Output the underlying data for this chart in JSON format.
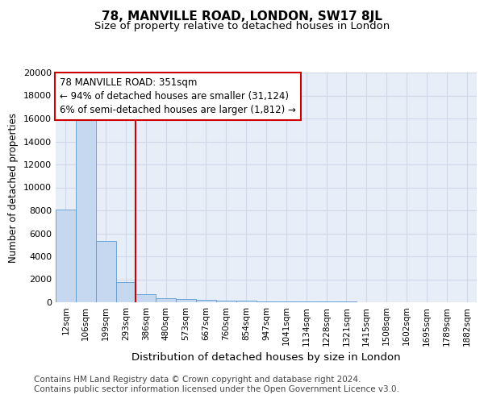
{
  "title1": "78, MANVILLE ROAD, LONDON, SW17 8JL",
  "title2": "Size of property relative to detached houses in London",
  "xlabel": "Distribution of detached houses by size in London",
  "ylabel": "Number of detached properties",
  "bar_color": "#c5d8ef",
  "bar_edge_color": "#5b9bd5",
  "categories": [
    "12sqm",
    "106sqm",
    "199sqm",
    "293sqm",
    "386sqm",
    "480sqm",
    "573sqm",
    "667sqm",
    "760sqm",
    "854sqm",
    "947sqm",
    "1041sqm",
    "1134sqm",
    "1228sqm",
    "1321sqm",
    "1415sqm",
    "1508sqm",
    "1602sqm",
    "1695sqm",
    "1789sqm",
    "1882sqm"
  ],
  "values": [
    8100,
    16600,
    5300,
    1750,
    700,
    370,
    270,
    180,
    150,
    120,
    100,
    80,
    60,
    50,
    38,
    28,
    22,
    18,
    13,
    10,
    7
  ],
  "vline_x": 3.5,
  "vline_color": "#cc0000",
  "annotation_text": "78 MANVILLE ROAD: 351sqm\n← 94% of detached houses are smaller (31,124)\n6% of semi-detached houses are larger (1,812) →",
  "annotation_box_color": "white",
  "annotation_box_edge_color": "#cc0000",
  "ylim": [
    0,
    20000
  ],
  "yticks": [
    0,
    2000,
    4000,
    6000,
    8000,
    10000,
    12000,
    14000,
    16000,
    18000,
    20000
  ],
  "footer": "Contains HM Land Registry data © Crown copyright and database right 2024.\nContains public sector information licensed under the Open Government Licence v3.0.",
  "bg_color": "#e8eef8",
  "grid_color": "#d0d8e8",
  "title1_fontsize": 11,
  "title2_fontsize": 9.5,
  "annotation_fontsize": 8.5,
  "ylabel_fontsize": 8.5,
  "xlabel_fontsize": 9.5,
  "footer_fontsize": 7.5,
  "tick_fontsize": 7.5,
  "ytick_fontsize": 8
}
